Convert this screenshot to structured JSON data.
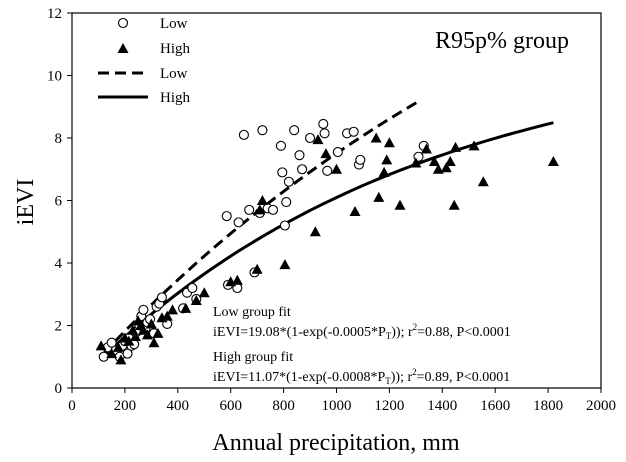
{
  "chart_data": {
    "type": "scatter",
    "title": "R95p% group",
    "xlabel": "Annual precipitation, mm",
    "ylabel": "iEVI",
    "xlim": [
      0,
      2000
    ],
    "ylim": [
      0,
      12
    ],
    "x_ticks": [
      0,
      200,
      400,
      600,
      800,
      1000,
      1200,
      1400,
      1600,
      1800,
      2000
    ],
    "y_ticks": [
      0,
      2,
      4,
      6,
      8,
      10,
      12
    ],
    "grid": false,
    "legend_position": "top-left",
    "legend": [
      {
        "label": "Low",
        "marker": "open-circle"
      },
      {
        "label": "High",
        "marker": "filled-triangle"
      },
      {
        "label": "Low",
        "line": "dashed"
      },
      {
        "label": "High",
        "line": "solid"
      }
    ],
    "series": [
      {
        "name": "Low",
        "marker": "open-circle",
        "points": [
          [
            120,
            1.0
          ],
          [
            135,
            1.3
          ],
          [
            150,
            1.45
          ],
          [
            165,
            1.2
          ],
          [
            180,
            1.0
          ],
          [
            190,
            1.35
          ],
          [
            200,
            1.5
          ],
          [
            210,
            1.1
          ],
          [
            215,
            1.6
          ],
          [
            225,
            1.35
          ],
          [
            235,
            1.4
          ],
          [
            245,
            1.8
          ],
          [
            255,
            2.0
          ],
          [
            262,
            2.3
          ],
          [
            270,
            2.5
          ],
          [
            278,
            1.9
          ],
          [
            285,
            2.1
          ],
          [
            295,
            2.2
          ],
          [
            310,
            1.75
          ],
          [
            320,
            2.6
          ],
          [
            330,
            2.7
          ],
          [
            340,
            2.9
          ],
          [
            360,
            2.05
          ],
          [
            420,
            2.55
          ],
          [
            435,
            3.05
          ],
          [
            455,
            3.2
          ],
          [
            470,
            2.85
          ],
          [
            585,
            5.5
          ],
          [
            590,
            3.3
          ],
          [
            625,
            3.2
          ],
          [
            630,
            5.3
          ],
          [
            650,
            8.1
          ],
          [
            670,
            5.7
          ],
          [
            690,
            3.7
          ],
          [
            710,
            5.6
          ],
          [
            720,
            8.25
          ],
          [
            740,
            5.75
          ],
          [
            760,
            5.7
          ],
          [
            790,
            7.75
          ],
          [
            795,
            6.9
          ],
          [
            805,
            5.2
          ],
          [
            810,
            5.95
          ],
          [
            820,
            6.6
          ],
          [
            840,
            8.25
          ],
          [
            860,
            7.45
          ],
          [
            870,
            7.0
          ],
          [
            900,
            8.0
          ],
          [
            950,
            8.45
          ],
          [
            955,
            8.15
          ],
          [
            965,
            6.95
          ],
          [
            1005,
            7.55
          ],
          [
            1040,
            8.15
          ],
          [
            1065,
            8.2
          ],
          [
            1085,
            7.15
          ],
          [
            1090,
            7.3
          ],
          [
            1310,
            7.4
          ],
          [
            1330,
            7.75
          ]
        ]
      },
      {
        "name": "High",
        "marker": "filled-triangle",
        "points": [
          [
            110,
            1.35
          ],
          [
            150,
            1.1
          ],
          [
            175,
            1.3
          ],
          [
            185,
            0.9
          ],
          [
            200,
            1.6
          ],
          [
            215,
            1.5
          ],
          [
            230,
            1.85
          ],
          [
            240,
            1.65
          ],
          [
            250,
            2.15
          ],
          [
            260,
            2.0
          ],
          [
            270,
            1.85
          ],
          [
            285,
            1.7
          ],
          [
            300,
            2.05
          ],
          [
            310,
            1.45
          ],
          [
            325,
            1.75
          ],
          [
            340,
            2.25
          ],
          [
            360,
            2.3
          ],
          [
            380,
            2.5
          ],
          [
            430,
            2.55
          ],
          [
            470,
            2.8
          ],
          [
            500,
            3.05
          ],
          [
            600,
            3.4
          ],
          [
            625,
            3.45
          ],
          [
            700,
            3.8
          ],
          [
            710,
            5.7
          ],
          [
            720,
            6.0
          ],
          [
            805,
            3.95
          ],
          [
            920,
            5.0
          ],
          [
            930,
            7.95
          ],
          [
            960,
            7.5
          ],
          [
            1000,
            7.0
          ],
          [
            1070,
            5.65
          ],
          [
            1150,
            8.0
          ],
          [
            1160,
            6.1
          ],
          [
            1180,
            6.9
          ],
          [
            1190,
            7.3
          ],
          [
            1200,
            7.85
          ],
          [
            1240,
            5.85
          ],
          [
            1300,
            7.2
          ],
          [
            1340,
            7.65
          ],
          [
            1370,
            7.25
          ],
          [
            1385,
            7.0
          ],
          [
            1415,
            7.05
          ],
          [
            1430,
            7.25
          ],
          [
            1445,
            5.85
          ],
          [
            1450,
            7.7
          ],
          [
            1520,
            7.75
          ],
          [
            1555,
            6.6
          ],
          [
            1820,
            7.25
          ]
        ]
      }
    ],
    "fits": [
      {
        "name": "Low",
        "style": "dashed",
        "a": 19.08,
        "k": 0.0005,
        "x_range": [
          120,
          1320
        ]
      },
      {
        "name": "High",
        "style": "solid",
        "a": 11.07,
        "k": 0.0008,
        "x_range": [
          120,
          1820
        ]
      }
    ],
    "annotations": {
      "low_title": "Low group fit",
      "low_eq_main": "iEVI=19.08*(1-exp(-0.0005*P",
      "low_eq_sub": "T",
      "low_eq_tail": ")); r",
      "low_eq_sup": "2",
      "low_eq_end": "=0.88, P<0.0001",
      "high_title": "High group fit",
      "high_eq_main": "iEVI=11.07*(1-exp(-0.0008*P",
      "high_eq_sub": "T",
      "high_eq_tail": ")); r",
      "high_eq_sup": "2",
      "high_eq_end": "=0.89, P<0.0001"
    }
  }
}
